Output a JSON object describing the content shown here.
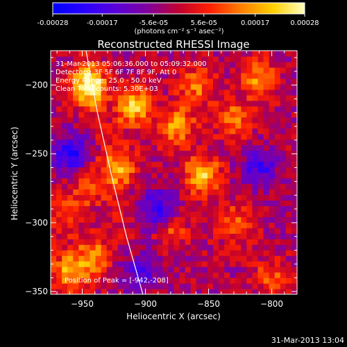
{
  "chart_data": {
    "type": "heatmap",
    "title": "Reconstructed RHESSI Image",
    "colorbar": {
      "ticks": [
        "-0.00028",
        "-0.00017",
        "-5.6e-05",
        "5.6e-05",
        "0.00017",
        "0.00028"
      ],
      "min": -0.00028,
      "max": 0.00028,
      "units": "(photons cm⁻² s⁻¹ asec⁻²)",
      "colormap": [
        "#0000ff",
        "#2a00ff",
        "#5a00d8",
        "#8000a0",
        "#c00030",
        "#ff2000",
        "#ff8000",
        "#ffd000",
        "#ffffc0"
      ]
    },
    "xlabel": "Heliocentric X (arcsec)",
    "ylabel": "Heliocentric Y (arcsec)",
    "xlim": [
      -975,
      -780
    ],
    "ylim": [
      -352,
      -175
    ],
    "xticks": [
      -950,
      -900,
      -850,
      -800
    ],
    "yticks": [
      -200,
      -250,
      -300,
      -350
    ],
    "info_lines": [
      "31-Mar-2013 05:06:36.000 to 05:09:32.000",
      "Detectors: 3F 5F 6F 7F 8F 9F, Att 0",
      "Energy Range: 25.0 - 50.0 keV",
      "Clean      Total counts: 5.30E+03"
    ],
    "peak_label": "Position of Peak = [-942,-208]",
    "peak": [
      -942,
      -208
    ],
    "limb_curve": [
      [
        -947,
        -175
      ],
      [
        -938,
        -220
      ],
      [
        -927,
        -265
      ],
      [
        -915,
        -310
      ],
      [
        -902,
        -352
      ]
    ],
    "bright_sources": [
      {
        "x": -945,
        "y": -200,
        "value": 0.00028
      },
      {
        "x": -910,
        "y": -215,
        "value": 0.00024
      },
      {
        "x": -875,
        "y": -230,
        "value": 0.0002
      },
      {
        "x": -855,
        "y": -265,
        "value": 0.00022
      },
      {
        "x": -920,
        "y": -260,
        "value": 0.00018
      },
      {
        "x": -830,
        "y": -225,
        "value": 0.00016
      },
      {
        "x": -810,
        "y": -195,
        "value": 0.00018
      },
      {
        "x": -960,
        "y": -335,
        "value": 0.0002
      },
      {
        "x": -940,
        "y": -325,
        "value": 0.00017
      },
      {
        "x": -830,
        "y": -300,
        "value": 0.00014
      },
      {
        "x": -880,
        "y": -305,
        "value": 0.00012
      },
      {
        "x": -945,
        "y": -275,
        "value": 0.00012
      },
      {
        "x": -860,
        "y": -200,
        "value": 0.00015
      },
      {
        "x": -800,
        "y": -340,
        "value": 0.00012
      },
      {
        "x": -965,
        "y": -295,
        "value": 0.00011
      }
    ],
    "dark_regions": [
      {
        "x": -960,
        "y": -250,
        "value": -0.0002
      },
      {
        "x": -890,
        "y": -290,
        "value": -0.00018
      },
      {
        "x": -810,
        "y": -260,
        "value": -0.00015
      },
      {
        "x": -905,
        "y": -335,
        "value": -0.00016
      }
    ]
  },
  "timestamp": "31-Mar-2013 13:04"
}
